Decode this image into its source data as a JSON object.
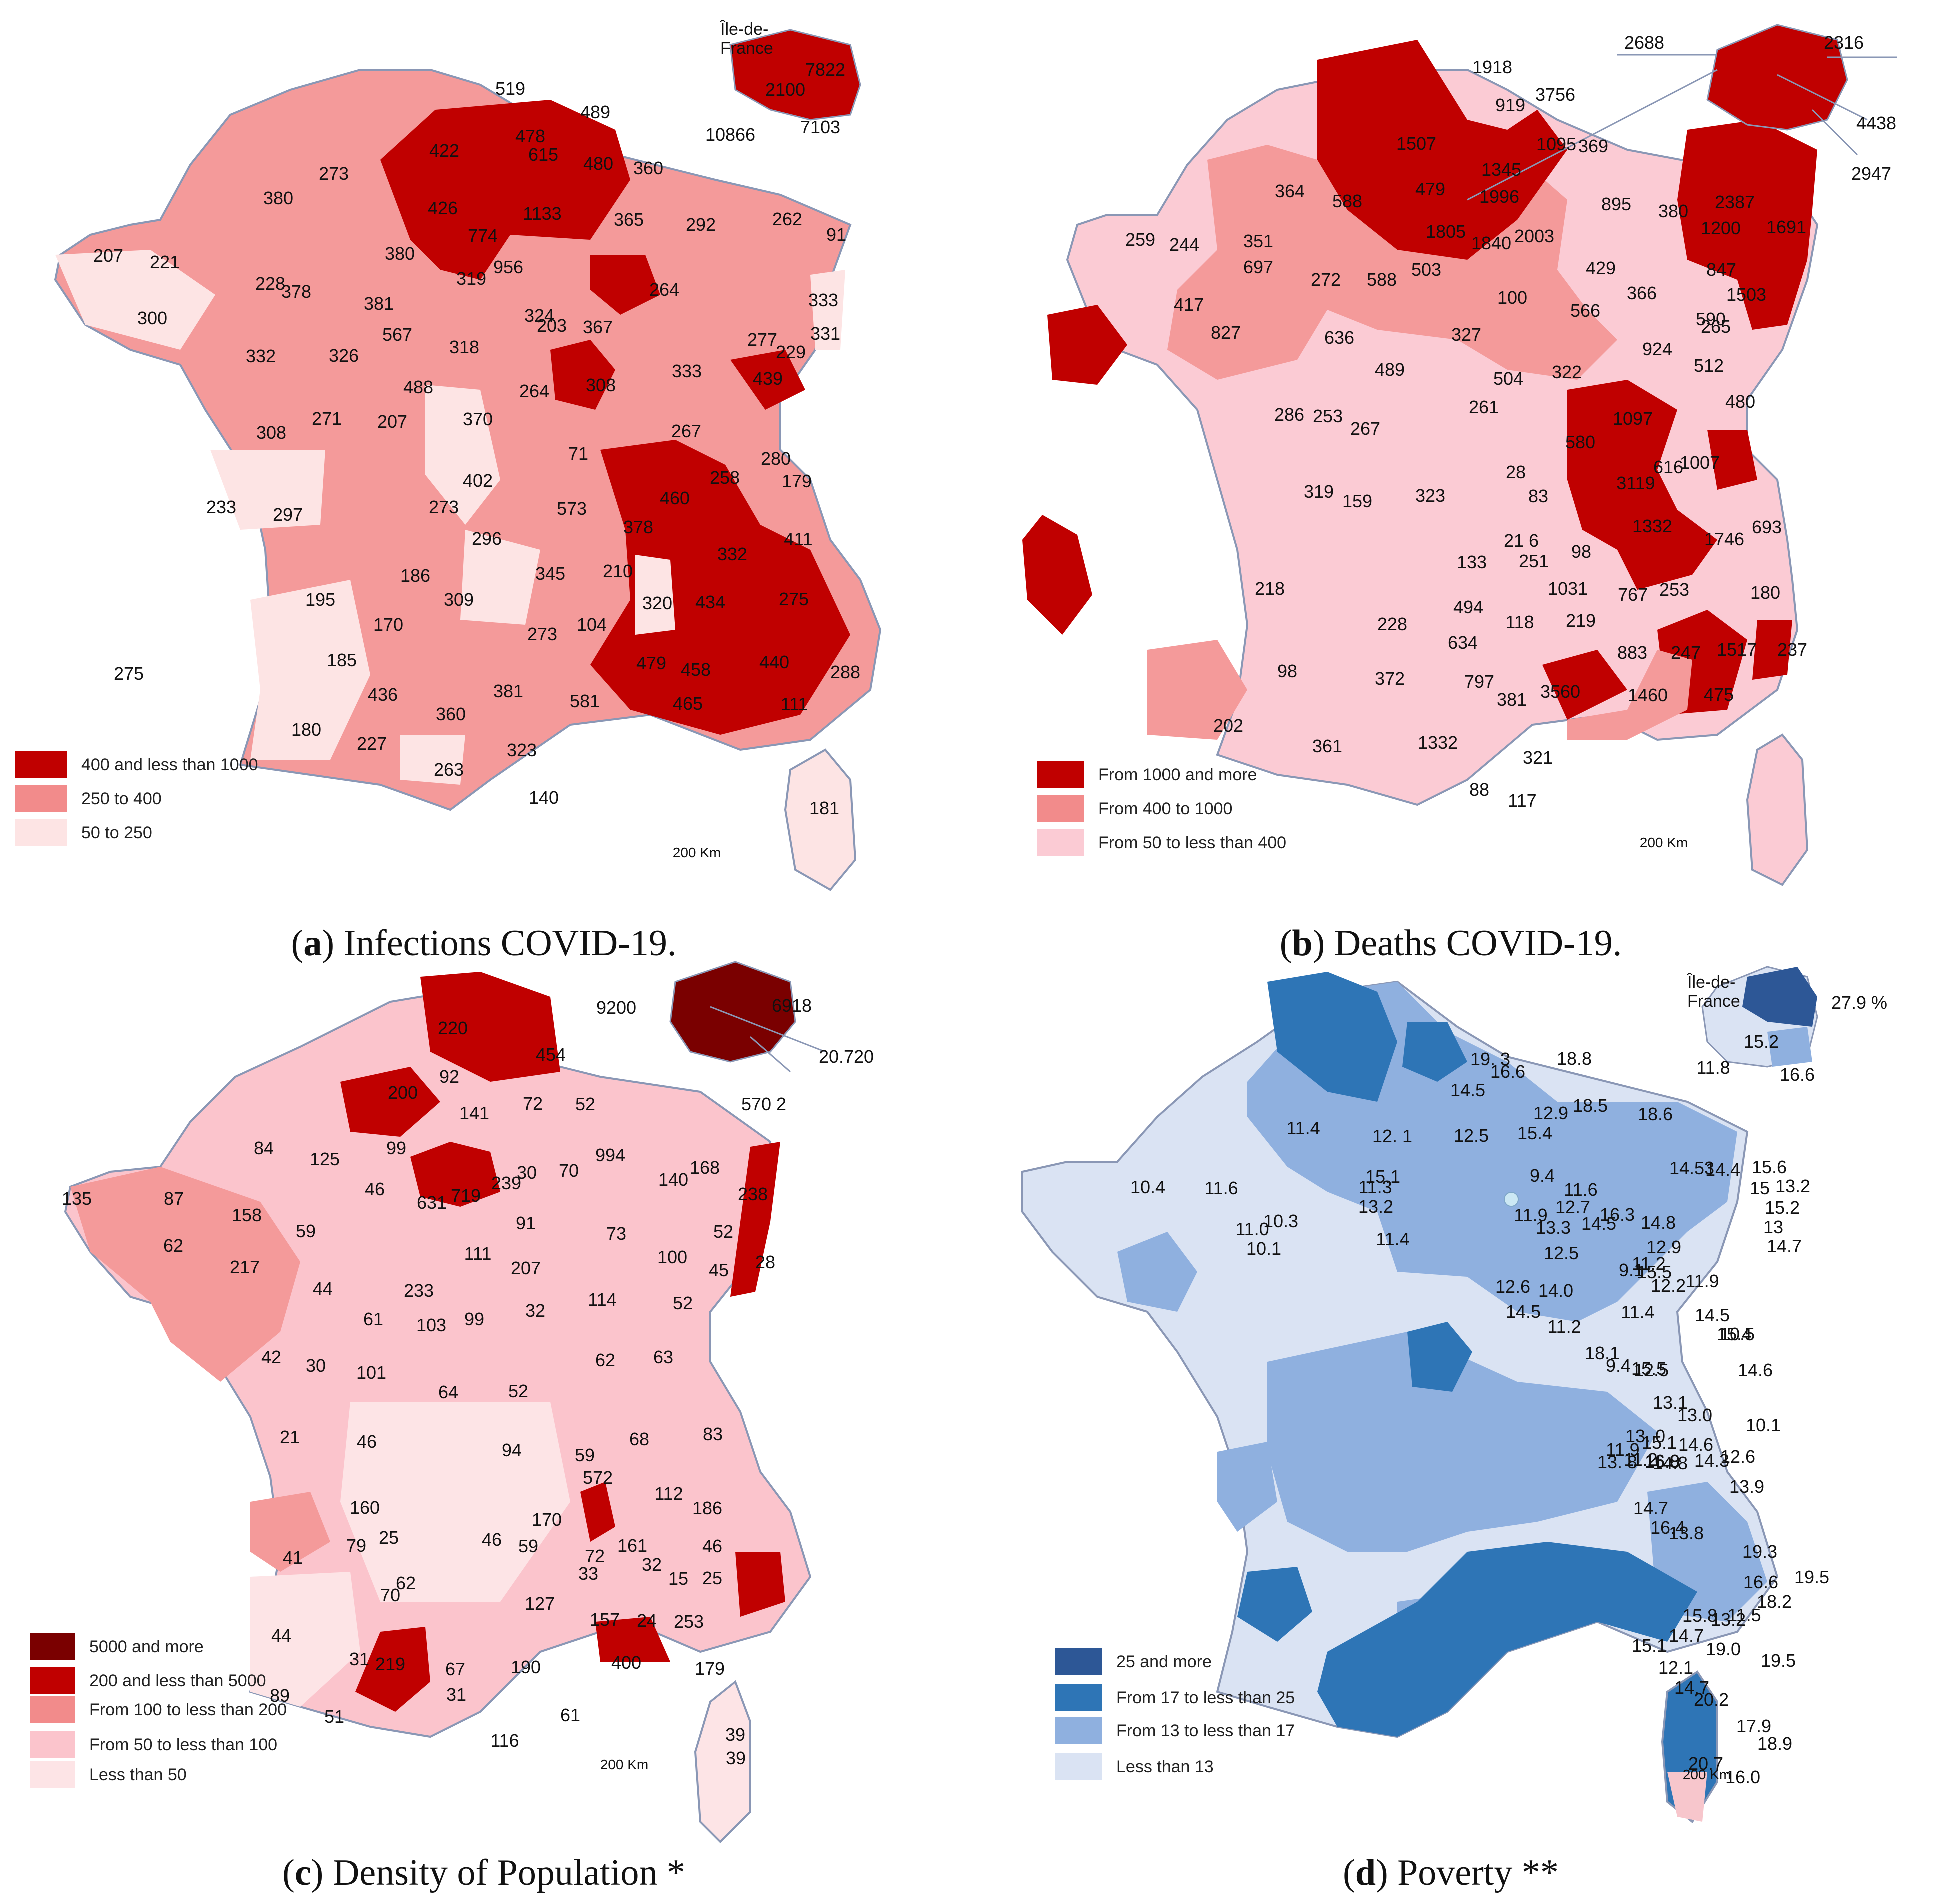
{
  "panels": [
    {
      "id": "a",
      "caption_letter": "a",
      "caption_text": ") Infections COVID-19.",
      "inset_title": "Île-de-France",
      "inset_values": [
        "7822",
        "2100",
        "7103",
        "10866"
      ],
      "legend": [
        {
          "label": "400 and less than 1000",
          "color": "#c00000"
        },
        {
          "label": "250 to 400",
          "color": "#f28b8b"
        },
        {
          "label": "50 to 250",
          "color": "#fde4e4"
        }
      ],
      "scale": "200 Km",
      "values": [
        "519",
        "489",
        "478",
        "422",
        "480",
        "615",
        "1133",
        "426",
        "774",
        "956",
        "360",
        "380",
        "273",
        "380",
        "365",
        "292",
        "262",
        "91",
        "207",
        "221",
        "300",
        "228",
        "378",
        "381",
        "319",
        "567",
        "264",
        "203",
        "333",
        "331",
        "229",
        "277",
        "332",
        "326",
        "324",
        "367",
        "333",
        "488",
        "318",
        "439",
        "264",
        "308",
        "308",
        "271",
        "207",
        "370",
        "280",
        "267",
        "71",
        "402",
        "258",
        "179",
        "233",
        "297",
        "273",
        "296",
        "573",
        "460",
        "378",
        "411",
        "332",
        "186",
        "345",
        "210",
        "320",
        "434",
        "275",
        "195",
        "170",
        "309",
        "273",
        "104",
        "275",
        "185",
        "436",
        "479",
        "458",
        "440",
        "288",
        "360",
        "381",
        "581",
        "465",
        "111",
        "180",
        "227",
        "263",
        "323",
        "140",
        "181"
      ]
    },
    {
      "id": "b",
      "caption_letter": "b",
      "caption_text": ") Deaths COVID-19.",
      "inset_values": [
        "2688",
        "2316",
        "4438",
        "2947"
      ],
      "legend": [
        {
          "label": "From 1000 and more",
          "color": "#c00000"
        },
        {
          "label": "From 400 to 1000",
          "color": "#f28b8b"
        },
        {
          "label": "From 50 to less than 400",
          "color": "#fbcbd4"
        }
      ],
      "scale": "200 Km",
      "values": [
        "1918",
        "3756",
        "919",
        "1507",
        "1345",
        "1095",
        "369",
        "364",
        "588",
        "479",
        "1996",
        "895",
        "380",
        "2387",
        "259",
        "244",
        "351",
        "1805",
        "1840",
        "2003",
        "1200",
        "1691",
        "697",
        "272",
        "588",
        "503",
        "429",
        "847",
        "417",
        "100",
        "566",
        "366",
        "1503",
        "590",
        "827",
        "636",
        "327",
        "265",
        "489",
        "504",
        "322",
        "924",
        "512",
        "286",
        "253",
        "267",
        "261",
        "1097",
        "480",
        "580",
        "1007",
        "28",
        "616",
        "319",
        "159",
        "323",
        "83",
        "3119",
        "21 6",
        "1332",
        "1746",
        "693",
        "1031",
        "218",
        "133",
        "251",
        "98",
        "494",
        "767",
        "253",
        "180",
        "228",
        "118",
        "219",
        "634",
        "883",
        "247",
        "1517",
        "237",
        "98",
        "372",
        "797",
        "381",
        "3560",
        "1460",
        "475",
        "202",
        "361",
        "1332",
        "321",
        "88",
        "117"
      ]
    },
    {
      "id": "c",
      "caption_letter": "c",
      "caption_text": ") Density of Population *",
      "inset_values": [
        "9200",
        "6918",
        "20.720",
        "570 2"
      ],
      "legend": [
        {
          "label": "5000 and more",
          "color": "#7a0000"
        },
        {
          "label": "200 and less than 5000",
          "color": "#c00000"
        },
        {
          "label": "From 100 to less than 200",
          "color": "#f28b8b"
        },
        {
          "label": "From 50 to less than 100",
          "color": "#fbc4cc"
        },
        {
          "label": "Less than 50",
          "color": "#fde4e6"
        }
      ],
      "scale": "200 Km",
      "values": [
        "220",
        "454",
        "92",
        "200",
        "141",
        "72",
        "52",
        "84",
        "125",
        "99",
        "994",
        "30",
        "168",
        "238",
        "135",
        "87",
        "46",
        "631",
        "719",
        "239",
        "70",
        "140",
        "158",
        "59",
        "91",
        "73",
        "52",
        "28",
        "62",
        "217",
        "111",
        "207",
        "100",
        "45",
        "44",
        "233",
        "114",
        "52",
        "61",
        "103",
        "99",
        "32",
        "42",
        "30",
        "101",
        "62",
        "63",
        "64",
        "52",
        "21",
        "46",
        "94",
        "59",
        "68",
        "83",
        "572",
        "112",
        "186",
        "41",
        "160",
        "170",
        "72",
        "161",
        "46",
        "25",
        "46",
        "59",
        "79",
        "33",
        "32",
        "15",
        "25",
        "62",
        "70",
        "127",
        "157",
        "24",
        "253",
        "44",
        "31",
        "219",
        "67",
        "190",
        "400",
        "179",
        "89",
        "51",
        "31",
        "61",
        "116",
        "39",
        "39"
      ]
    },
    {
      "id": "d",
      "caption_letter": "d",
      "caption_text": ") Poverty **",
      "inset_title": "Île-de-France",
      "inset_values": [
        "27.9 %",
        "15.2",
        "11.8",
        "16.6"
      ],
      "legend": [
        {
          "label": "25 and more",
          "color": "#2d5796"
        },
        {
          "label": "From 17 to less than 25",
          "color": "#2e75b6"
        },
        {
          "label": "From 13 to less than 17",
          "color": "#8fb0df"
        },
        {
          "label": "Less than 13",
          "color": "#dae3f3"
        }
      ],
      "scale": "200 Km",
      "values": [
        "19. 3",
        "18.8",
        "16.6",
        "14.5",
        "12.9",
        "18.5",
        "18.6",
        "11.4",
        "12. 1",
        "12.5",
        "15.4",
        "14.53",
        "14.4",
        "15.6",
        "10.4",
        "11.6",
        "15.1",
        "9.4",
        "11.6",
        "15",
        "13.2",
        "12.7",
        "16.3",
        "11.3",
        "13.2",
        "11.9",
        "15.2",
        "10.3",
        "14.8",
        "13",
        "11.0",
        "13.3",
        "14.5",
        "14.7",
        "12.9",
        "10.1",
        "11.4",
        "12.5",
        "11.2",
        "15.5",
        "11.9",
        "12.6",
        "14.0",
        "9.1",
        "12.2",
        "14.5",
        "11.2",
        "11.4",
        "14.5",
        "15.4",
        "18.1",
        "10.5",
        "9.4",
        "12.5",
        "14.6",
        "15.5",
        "13.1",
        "13. 8",
        "15.1",
        "13.0",
        "10.1",
        "16.0",
        "13. 0",
        "11.9",
        "11.2",
        "12.6",
        "14.8",
        "14.3",
        "14.6",
        "13.9",
        "16.8",
        "14.7",
        "16.4",
        "13.8",
        "19.3",
        "19.5",
        "16.6",
        "15.8",
        "11.5",
        "14.7",
        "15.1",
        "19.0",
        "18.2",
        "19.5",
        "13.2",
        "12.1",
        "14.7",
        "20.2",
        "17.9",
        "20.7",
        "18.9",
        "16.0"
      ]
    }
  ]
}
